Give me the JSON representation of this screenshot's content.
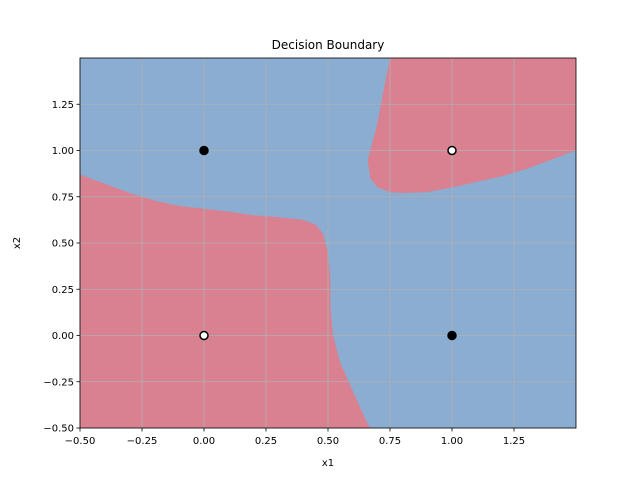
{
  "chart_data": {
    "type": "scatter",
    "title": "Decision Boundary",
    "xlabel": "x1",
    "ylabel": "x2",
    "xlim": [
      -0.5,
      1.5
    ],
    "ylim": [
      -0.5,
      1.5
    ],
    "xticks": [
      -0.5,
      -0.25,
      0.0,
      0.25,
      0.5,
      0.75,
      1.0,
      1.25
    ],
    "yticks": [
      -0.5,
      -0.25,
      0.0,
      0.25,
      0.5,
      0.75,
      1.0,
      1.25
    ],
    "xtick_labels": [
      "−0.50",
      "−0.25",
      "0.00",
      "0.25",
      "0.50",
      "0.75",
      "1.00",
      "1.25"
    ],
    "ytick_labels": [
      "−0.50",
      "−0.25",
      "0.00",
      "0.25",
      "0.50",
      "0.75",
      "1.00",
      "1.25"
    ],
    "grid": true,
    "colors": {
      "class_0_region": "#d98191",
      "class_1_region": "#8aadd1",
      "grid": "#b0b0b0",
      "point_class_0": "#ffffff",
      "point_class_1": "#000000"
    },
    "points": [
      {
        "x": 0,
        "y": 0,
        "label": 0
      },
      {
        "x": 0,
        "y": 1,
        "label": 1
      },
      {
        "x": 1,
        "y": 0,
        "label": 1
      },
      {
        "x": 1,
        "y": 1,
        "label": 0
      }
    ],
    "regions": [
      {
        "class": 0,
        "boundary": [
          [
            -0.5,
            0.87
          ],
          [
            -0.4,
            0.82
          ],
          [
            -0.3,
            0.77
          ],
          [
            -0.2,
            0.73
          ],
          [
            -0.1,
            0.7
          ],
          [
            0.0,
            0.685
          ],
          [
            0.1,
            0.67
          ],
          [
            0.2,
            0.65
          ],
          [
            0.3,
            0.64
          ],
          [
            0.4,
            0.625
          ],
          [
            0.45,
            0.6
          ],
          [
            0.48,
            0.55
          ],
          [
            0.5,
            0.45
          ],
          [
            0.51,
            0.3
          ],
          [
            0.51,
            0.15
          ],
          [
            0.52,
            0.0
          ],
          [
            0.55,
            -0.15
          ],
          [
            0.6,
            -0.3
          ],
          [
            0.65,
            -0.45
          ],
          [
            0.67,
            -0.5
          ],
          [
            -0.5,
            -0.5
          ]
        ]
      },
      {
        "class": 0,
        "boundary": [
          [
            0.75,
            1.5
          ],
          [
            1.5,
            1.5
          ],
          [
            1.5,
            1.0
          ],
          [
            1.4,
            0.95
          ],
          [
            1.3,
            0.9
          ],
          [
            1.2,
            0.86
          ],
          [
            1.1,
            0.83
          ],
          [
            1.0,
            0.8
          ],
          [
            0.9,
            0.775
          ],
          [
            0.8,
            0.77
          ],
          [
            0.75,
            0.775
          ],
          [
            0.7,
            0.8
          ],
          [
            0.67,
            0.85
          ],
          [
            0.66,
            0.95
          ],
          [
            0.68,
            1.05
          ],
          [
            0.7,
            1.15
          ],
          [
            0.72,
            1.3
          ]
        ]
      }
    ]
  }
}
